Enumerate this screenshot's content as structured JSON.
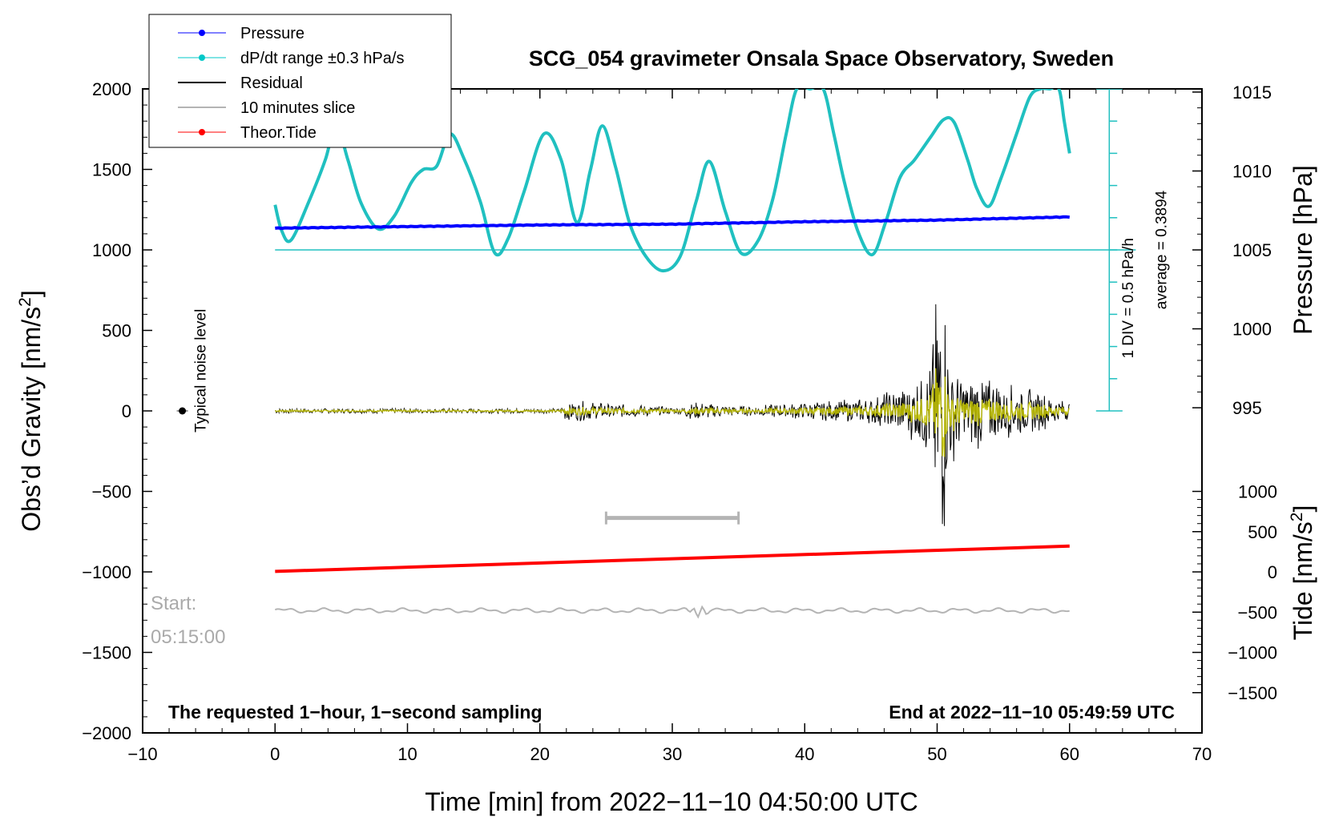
{
  "chart_data": {
    "type": "line",
    "title": "SCG_054 gravimeter Onsala Space Observatory, Sweden",
    "xlabel": "Time [min] from 2022−11−10 04:50:00 UTC",
    "ylabel_left": "Obs’d Gravity [nm/s",
    "ylabel_left_sup": "2",
    "ylabel_left_end": "]",
    "ylabel_right_top": "Pressure [hPa]",
    "ylabel_right_bottom": "Tide [nm/s",
    "ylabel_right_bottom_sup": "2",
    "ylabel_right_bottom_end": "]",
    "xlim": [
      -10,
      70
    ],
    "ylim": [
      -2000,
      2000
    ],
    "x_ticks": [
      -10,
      0,
      10,
      20,
      30,
      40,
      50,
      60,
      70
    ],
    "x_tick_labels": [
      "−10",
      "0",
      "10",
      "20",
      "30",
      "40",
      "50",
      "60",
      "70"
    ],
    "y_ticks": [
      2000,
      1500,
      1000,
      500,
      0,
      -500,
      -1000,
      -1500,
      -2000
    ],
    "y_tick_labels": [
      "2000",
      "1500",
      "1000",
      "500",
      "0",
      "−500",
      "−1000",
      "−1500",
      "−2000"
    ],
    "pressure_ticks": [
      1015,
      1010,
      1005,
      1000,
      995
    ],
    "pressure_tick_labels": [
      "1015",
      "1010",
      "1005",
      "1000",
      "995"
    ],
    "pressure_mapping": {
      "p1": 1005,
      "y1": 1000,
      "hpa_per_500": 5.1
    },
    "tide_ticks": [
      1000,
      500,
      0,
      -500,
      -1000,
      -1500
    ],
    "tide_tick_labels": [
      "1000",
      "500",
      "0",
      "−500",
      "−1000",
      "−1500"
    ],
    "tide_mapping": {
      "t0": 0,
      "y0": -1000,
      "nms2_per_unit": 0.5
    },
    "legend": [
      {
        "label": "Pressure",
        "color": "#0000ff",
        "marker": true
      },
      {
        "label": "dP/dt range ±0.3 hPa/s",
        "color": "#00c8c8",
        "marker": true
      },
      {
        "label": "Residual",
        "color": "#000000",
        "marker": false
      },
      {
        "label": "10 minutes slice",
        "color": "#b4b4b4",
        "marker": false
      },
      {
        "label": "Theor.Tide",
        "color": "#ff0000",
        "marker": true
      }
    ],
    "series": {
      "pressure": {
        "name": "Pressure",
        "color": "#0000ff",
        "x": [
          0,
          10,
          20,
          30,
          40,
          50,
          60
        ],
        "y": [
          1135,
          1145,
          1155,
          1160,
          1175,
          1185,
          1205
        ]
      },
      "dpdt": {
        "name": "dP/dt range ±0.3 hPa/s",
        "color": "#20c0c0",
        "baseline": 1000,
        "x": [
          0,
          0.5,
          1.2,
          2.5,
          3.8,
          4.6,
          5.5,
          6.5,
          7.8,
          9,
          10.3,
          11.2,
          12.2,
          13.2,
          14.2,
          15.5,
          16.6,
          17.6,
          18.8,
          20.3,
          21.6,
          22.8,
          23.8,
          24.7,
          25.7,
          26.8,
          28,
          29.3,
          30.6,
          31.8,
          32.8,
          34,
          35.2,
          36.5,
          37.6,
          38.6,
          39.4,
          40.4,
          41.4,
          42.2,
          43,
          44,
          45.1,
          46.1,
          47.2,
          48.3,
          49.5,
          50.5,
          51.3,
          52.3,
          53,
          53.9,
          54.8,
          56,
          57,
          57.8,
          58.5,
          59.2,
          59.6,
          60
        ],
        "y": [
          1280,
          1120,
          1060,
          1290,
          1560,
          1780,
          1560,
          1290,
          1130,
          1210,
          1420,
          1500,
          1520,
          1720,
          1580,
          1300,
          980,
          1070,
          1360,
          1720,
          1560,
          1170,
          1490,
          1770,
          1520,
          1160,
          960,
          870,
          960,
          1300,
          1550,
          1240,
          980,
          1060,
          1320,
          1720,
          2000,
          2000,
          2000,
          1720,
          1420,
          1120,
          970,
          1170,
          1450,
          1560,
          1700,
          1810,
          1790,
          1560,
          1380,
          1270,
          1440,
          1720,
          1950,
          2000,
          2000,
          2000,
          1800,
          1600
        ]
      },
      "residual": {
        "name": "Residual",
        "color": "#000000",
        "x": [
          0,
          21.5,
          22,
          30.5,
          31.5,
          35,
          40,
          45,
          48,
          49.5,
          50.1,
          50.4,
          50.9,
          51.4,
          52.2,
          53,
          54,
          55,
          56,
          58,
          60
        ],
        "amp": [
          15,
          15,
          70,
          20,
          60,
          30,
          55,
          80,
          180,
          300,
          900,
          1000,
          350,
          300,
          220,
          260,
          220,
          180,
          160,
          120,
          60
        ]
      },
      "tide": {
        "name": "Theor.Tide",
        "color": "#ff0000",
        "x": [
          0,
          60
        ],
        "y": [
          -997,
          -840
        ]
      },
      "slice": {
        "name": "10 minutes slice",
        "color": "#b4b4b4",
        "baseline": -1240,
        "x_range": [
          0,
          60
        ],
        "bar_x": [
          25,
          35
        ],
        "bar_y": -665
      }
    },
    "noise_marker": {
      "x": -7,
      "y": 0
    },
    "annotations": {
      "noise_label": "Typical noise level",
      "div_label": "1 DIV = 0.5 hPa/h",
      "average_label": "average = 0.3894",
      "start_line1": "Start:",
      "start_line2": "05:15:00",
      "footer_left": "The requested 1−hour, 1−second sampling",
      "footer_right": "End at 2022−11−10 05:49:59 UTC"
    },
    "div_scale": {
      "x": 63,
      "y_top": 2000,
      "y_bottom": 0,
      "divisions": 10
    }
  }
}
